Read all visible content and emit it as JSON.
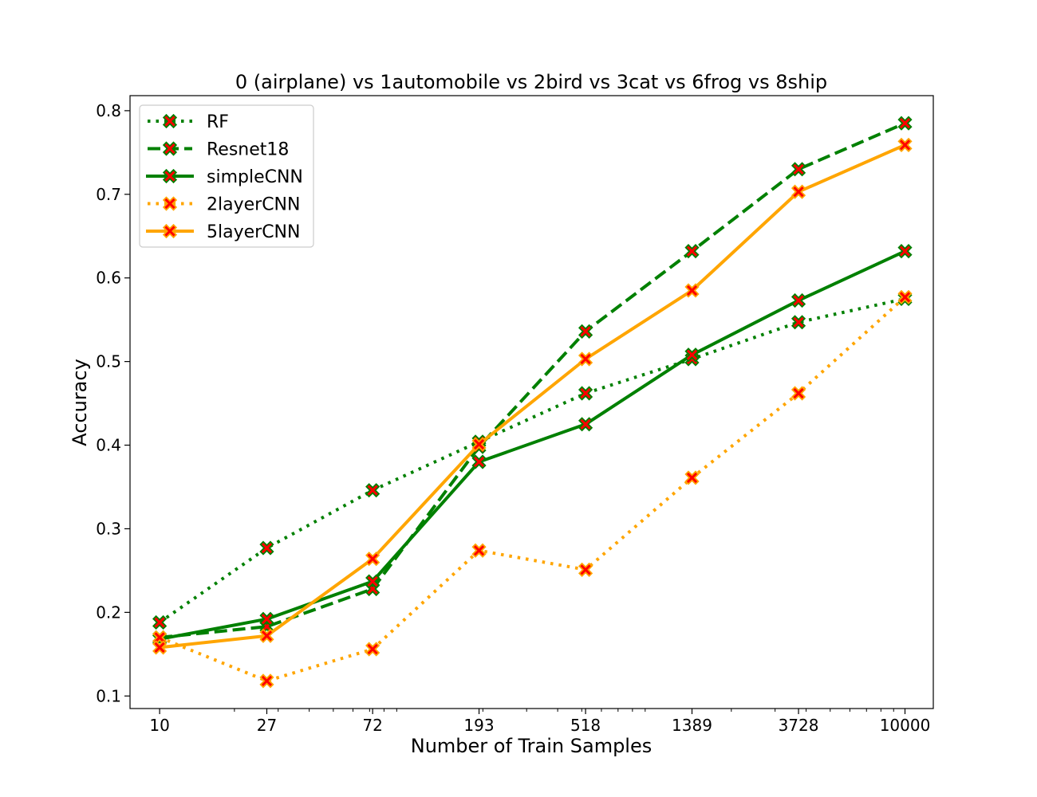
{
  "chart_data": {
    "type": "line",
    "title": "0 (airplane)  vs 1automobile vs 2bird vs 3cat vs 6frog vs 8ship",
    "xlabel": "Number of Train Samples",
    "ylabel": "Accuracy",
    "x_scale": "log",
    "x": [
      10,
      27,
      72,
      193,
      518,
      1389,
      3728,
      10000
    ],
    "x_tick_labels": [
      "10",
      "27",
      "72",
      "193",
      "518",
      "1389",
      "3728",
      "10000"
    ],
    "yticks": [
      0.1,
      0.2,
      0.3,
      0.4,
      0.5,
      0.6,
      0.7,
      0.8
    ],
    "y_tick_labels": [
      "0.1",
      "0.2",
      "0.3",
      "0.4",
      "0.5",
      "0.6",
      "0.7",
      "0.8"
    ],
    "xlim": [
      7.6,
      13000
    ],
    "ylim": [
      0.085,
      0.818
    ],
    "legend_position": "top-left",
    "grid": false,
    "marker_fill": "#ff0000",
    "series": [
      {
        "name": "RF",
        "color": "#008000",
        "style": "dotted",
        "values": [
          0.188,
          0.277,
          0.346,
          0.404,
          0.462,
          0.503,
          0.547,
          0.575
        ]
      },
      {
        "name": "Resnet18",
        "color": "#008000",
        "style": "dashed",
        "values": [
          0.17,
          0.183,
          0.228,
          0.398,
          0.536,
          0.632,
          0.73,
          0.785
        ]
      },
      {
        "name": "simpleCNN",
        "color": "#008000",
        "style": "solid",
        "values": [
          0.168,
          0.192,
          0.237,
          0.38,
          0.425,
          0.508,
          0.573,
          0.632
        ]
      },
      {
        "name": "2layerCNN",
        "color": "#ffa500",
        "style": "dotted",
        "values": [
          0.17,
          0.118,
          0.156,
          0.274,
          0.251,
          0.361,
          0.462,
          0.577
        ]
      },
      {
        "name": "5layerCNN",
        "color": "#ffa500",
        "style": "solid",
        "values": [
          0.158,
          0.172,
          0.264,
          0.401,
          0.503,
          0.585,
          0.703,
          0.759
        ]
      }
    ]
  }
}
